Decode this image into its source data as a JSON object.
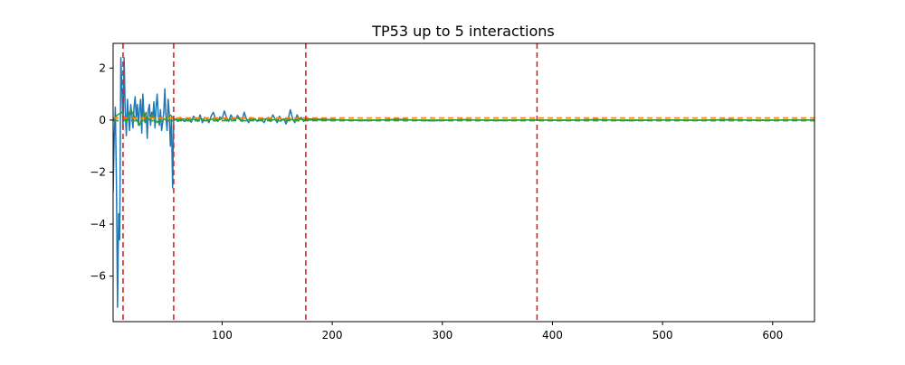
{
  "chart_data": {
    "type": "line",
    "title": "TP53 up to 5 interactions",
    "xlabel": "",
    "ylabel": "",
    "xlim": [
      1,
      638
    ],
    "ylim": [
      -7.75,
      2.95
    ],
    "x_ticks": [
      100,
      200,
      300,
      400,
      500,
      600
    ],
    "y_ticks": [
      2,
      0,
      -2,
      -4,
      -6
    ],
    "grid": false,
    "legend": "none",
    "colors": {
      "primary": "#1f77b4",
      "secondary": "#2ca02c",
      "cutoff": "#d62728",
      "zero": "#ff7f0e"
    },
    "vertical_lines": [
      10,
      56,
      176,
      386
    ],
    "horizontal_dashed_lines": [
      {
        "y": 0.08,
        "color": "#ff7f0e"
      },
      {
        "y": -0.02,
        "color": "#2ca02c"
      }
    ],
    "series": [
      {
        "color": "#1f77b4",
        "x": [
          1,
          2,
          3,
          4,
          5,
          6,
          7,
          8,
          9,
          10,
          11,
          12,
          13,
          14,
          15,
          16,
          17,
          18,
          19,
          20,
          21,
          22,
          23,
          24,
          25,
          26,
          27,
          28,
          29,
          30,
          31,
          32,
          33,
          34,
          35,
          36,
          37,
          38,
          39,
          40,
          41,
          42,
          43,
          44,
          45,
          46,
          47,
          48,
          49,
          50,
          51,
          52,
          53,
          54,
          55,
          56,
          58,
          60,
          62,
          64,
          66,
          68,
          70,
          72,
          74,
          76,
          78,
          80,
          82,
          84,
          86,
          88,
          90,
          92,
          94,
          96,
          98,
          100,
          102,
          104,
          106,
          108,
          110,
          112,
          114,
          116,
          118,
          120,
          122,
          124,
          126,
          128,
          130,
          132,
          134,
          136,
          138,
          140,
          142,
          144,
          146,
          148,
          150,
          152,
          154,
          156,
          158,
          160,
          162,
          164,
          166,
          168,
          170,
          172,
          174,
          176,
          200,
          230,
          260,
          290,
          320,
          350,
          380,
          410,
          440,
          470,
          500,
          530,
          560,
          590,
          620,
          638
        ],
        "y": [
          -2.8,
          -0.6,
          0.5,
          -2.4,
          -7.2,
          -3.6,
          -4.6,
          2.4,
          1.2,
          -0.3,
          2.4,
          0.3,
          -0.6,
          0.8,
          0.1,
          -0.4,
          0.6,
          0.2,
          -0.3,
          0.5,
          0.9,
          0.1,
          0.6,
          -0.2,
          0.4,
          0.8,
          -0.5,
          1.0,
          0.2,
          -0.1,
          0.3,
          -0.7,
          0.4,
          0.6,
          -0.2,
          0.3,
          0.1,
          0.7,
          -0.3,
          0.5,
          1.0,
          0.2,
          -0.2,
          0.4,
          -0.4,
          -0.1,
          0.3,
          1.2,
          0.1,
          -0.4,
          0.8,
          0.2,
          -1.0,
          0.1,
          -2.6,
          0.0,
          0.05,
          -0.05,
          0.1,
          0.0,
          -0.05,
          0.08,
          0.02,
          -0.08,
          0.15,
          0.05,
          -0.05,
          0.2,
          -0.1,
          0.1,
          0.05,
          -0.1,
          0.15,
          0.3,
          0.05,
          -0.05,
          0.12,
          0.05,
          0.35,
          0.1,
          -0.05,
          0.2,
          0.05,
          0.0,
          0.18,
          0.05,
          -0.05,
          0.3,
          0.05,
          -0.1,
          0.1,
          0.02,
          0.05,
          -0.05,
          0.08,
          0.02,
          -0.1,
          0.05,
          0.1,
          -0.05,
          0.2,
          0.05,
          -0.1,
          0.15,
          0.0,
          0.05,
          -0.15,
          0.05,
          0.4,
          0.05,
          -0.1,
          0.2,
          0.05,
          0.1,
          -0.05,
          0.05,
          0.02,
          -0.02,
          0.03,
          -0.03,
          0.02,
          -0.02,
          0.01,
          -0.01,
          0.02,
          -0.02,
          0.01,
          -0.01,
          0.02,
          -0.01,
          0.01,
          0.0
        ]
      },
      {
        "color": "#2ca02c",
        "x": [
          1,
          5,
          9,
          13,
          17,
          21,
          25,
          29,
          33,
          37,
          41,
          45,
          49,
          53,
          57,
          61,
          65,
          69,
          73,
          77,
          81,
          85,
          89,
          93,
          97,
          101,
          105,
          109,
          113,
          117,
          121,
          125,
          129,
          133,
          137,
          141,
          145,
          149,
          153,
          157,
          161,
          165,
          169,
          173,
          177,
          220,
          280,
          340,
          400,
          460,
          520,
          580,
          638
        ],
        "y": [
          0.0,
          0.2,
          0.3,
          -0.1,
          0.4,
          0.1,
          -0.2,
          0.3,
          0.0,
          0.2,
          -0.1,
          0.1,
          0.0,
          0.2,
          0.0,
          0.02,
          0.05,
          -0.02,
          0.04,
          0.0,
          0.06,
          -0.03,
          0.02,
          0.05,
          0.0,
          0.08,
          -0.02,
          0.05,
          0.1,
          0.0,
          -0.03,
          0.04,
          0.02,
          -0.02,
          0.03,
          0.05,
          0.0,
          0.02,
          -0.04,
          0.05,
          0.03,
          0.0,
          0.04,
          0.02,
          0.0,
          0.0,
          0.0,
          0.0,
          0.0,
          0.0,
          0.0,
          0.0,
          0.0
        ]
      }
    ]
  }
}
